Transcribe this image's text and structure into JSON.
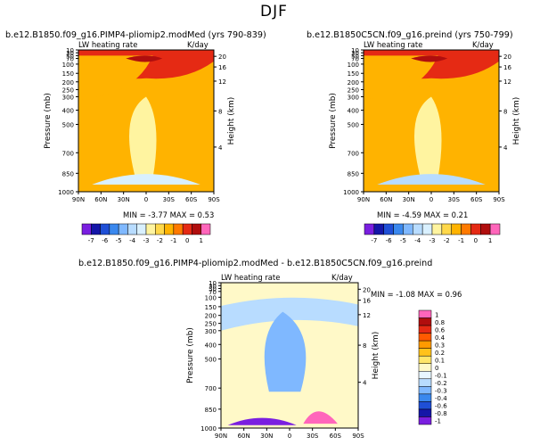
{
  "main_title": "DJF",
  "chart_data": [
    {
      "type": "heatmap",
      "title": "b.e12.B1850.f09_g16.PIMP4-pliomip2.modMed (yrs 790-839)",
      "subtitle_left": "LW heating rate",
      "subtitle_right": "K/day",
      "ylabel": "Pressure (mb)",
      "ylabel_right": "Height (km)",
      "x_ticks": [
        "90N",
        "60N",
        "30N",
        "0",
        "30S",
        "60S",
        "90S"
      ],
      "y_ticks": [
        "10",
        "30",
        "50",
        "70",
        "100",
        "150",
        "200",
        "250",
        "300",
        "400",
        "500",
        "700",
        "850",
        "1000"
      ],
      "y_right_ticks": [
        "20",
        "16",
        "12",
        "8",
        "4"
      ],
      "min_label": "MIN =",
      "min_value": "-3.77",
      "max_label": "MAX =",
      "max_value": "0.53",
      "colorbar": {
        "labels": [
          "-7",
          "-6",
          "-5",
          "-4",
          "-3",
          "-2",
          "-1",
          "0",
          "1"
        ],
        "colors": [
          "#7a1fe0",
          "#1416a8",
          "#1f4fd6",
          "#3a88ee",
          "#7fb8ff",
          "#b8dcff",
          "#d9f0ff",
          "#fff4a0",
          "#ffd84a",
          "#ffb300",
          "#ff7a00",
          "#e52a14",
          "#b00e0e",
          "#ff66bb"
        ]
      },
      "z_range": [
        -7,
        1
      ],
      "zones": {
        "top_band": -0.5,
        "upper_warm": -1.5,
        "tropical_tower": -3.0,
        "near_surface": -3.5,
        "core_max": 0.53
      }
    },
    {
      "type": "heatmap",
      "title": "b.e12.B1850C5CN.f09_g16.preind (yrs 750-799)",
      "subtitle_left": "LW heating rate",
      "subtitle_right": "K/day",
      "ylabel": "Pressure (mb)",
      "ylabel_right": "Height (km)",
      "x_ticks": [
        "90N",
        "60N",
        "30N",
        "0",
        "30S",
        "60S",
        "90S"
      ],
      "y_ticks": [
        "10",
        "30",
        "50",
        "70",
        "100",
        "150",
        "200",
        "250",
        "300",
        "400",
        "500",
        "700",
        "850",
        "1000"
      ],
      "y_right_ticks": [
        "20",
        "16",
        "12",
        "8",
        "4"
      ],
      "min_label": "MIN =",
      "min_value": "-4.59",
      "max_label": "MAX =",
      "max_value": "0.21",
      "colorbar": {
        "labels": [
          "-7",
          "-6",
          "-5",
          "-4",
          "-3",
          "-2",
          "-1",
          "0",
          "1"
        ],
        "colors": [
          "#7a1fe0",
          "#1416a8",
          "#1f4fd6",
          "#3a88ee",
          "#7fb8ff",
          "#b8dcff",
          "#d9f0ff",
          "#fff4a0",
          "#ffd84a",
          "#ffb300",
          "#ff7a00",
          "#e52a14",
          "#b00e0e",
          "#ff66bb"
        ]
      },
      "z_range": [
        -7,
        1
      ],
      "zones": {
        "top_band": -0.5,
        "upper_warm": -1.5,
        "tropical_tower": -3.0,
        "near_surface": -4.0,
        "core_max": 0.21
      }
    },
    {
      "type": "heatmap",
      "title": "b.e12.B1850.f09_g16.PIMP4-pliomip2.modMed - b.e12.B1850C5CN.f09_g16.preind",
      "subtitle_left": "LW heating rate",
      "subtitle_right": "K/day",
      "ylabel": "Pressure (mb)",
      "ylabel_right": "Height (km)",
      "x_ticks": [
        "90N",
        "60N",
        "30N",
        "0",
        "30S",
        "60S",
        "90S"
      ],
      "y_ticks": [
        "10",
        "30",
        "50",
        "70",
        "100",
        "150",
        "200",
        "250",
        "300",
        "400",
        "500",
        "700",
        "850",
        "1000"
      ],
      "y_right_ticks": [
        "20",
        "16",
        "12",
        "8",
        "4"
      ],
      "min_label": "MIN =",
      "min_value": "-1.08",
      "max_label": "MAX =",
      "max_value": "0.96",
      "colorbar": {
        "labels": [
          "1",
          "0.8",
          "0.6",
          "0.4",
          "0.3",
          "0.2",
          "0.1",
          "0",
          "-0.1",
          "-0.2",
          "-0.3",
          "-0.4",
          "-0.6",
          "-0.8",
          "-1"
        ],
        "colors": [
          "#ff66bb",
          "#b00e0e",
          "#e52a14",
          "#ff5a00",
          "#ff9a00",
          "#ffc21a",
          "#ffe66a",
          "#fff9c8",
          "#e8f7ff",
          "#b8dcff",
          "#7fb8ff",
          "#3a88ee",
          "#1f4fd6",
          "#1416a8",
          "#7a1fe0"
        ]
      },
      "z_range": [
        -1,
        1
      ],
      "zones": {
        "tropical_tower": -0.4,
        "upper_band": -0.3,
        "surface_south_max": 0.96,
        "surface_south_min": -1.08
      }
    }
  ]
}
